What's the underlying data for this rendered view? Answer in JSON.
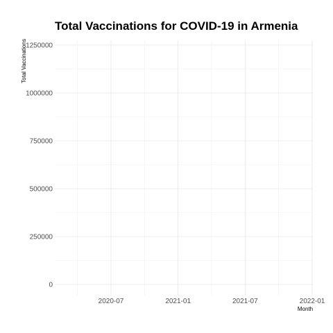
{
  "chart_data": {
    "type": "line",
    "title": "Total Vaccinations for COVID-19 in Armenia",
    "xlabel": "Month",
    "ylabel": "Total Vaccinations",
    "x_ticks": [
      "2020-07",
      "2021-01",
      "2021-07",
      "2022-01"
    ],
    "y_ticks": [
      0,
      250000,
      500000,
      750000,
      1000000,
      1250000
    ],
    "ylim": [
      0,
      1250000
    ],
    "xlim": [
      "2020-04",
      "2022-01"
    ],
    "grid": true,
    "series": []
  }
}
